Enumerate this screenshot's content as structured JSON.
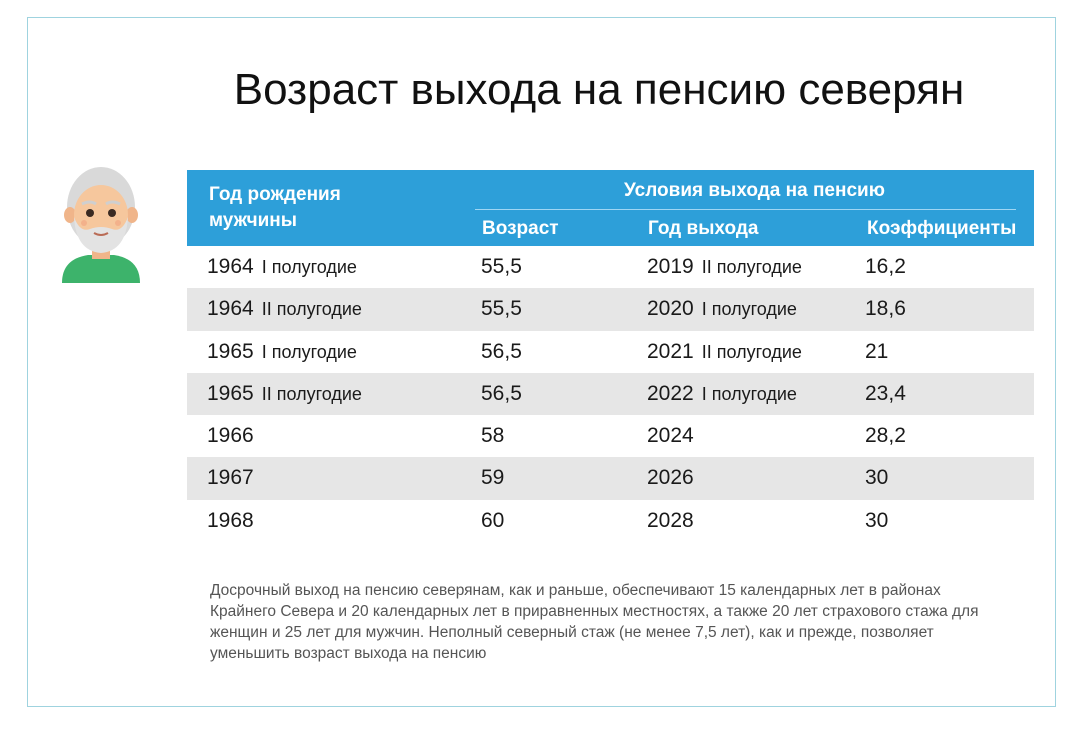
{
  "title": "Возраст выхода на пенсию северян",
  "table": {
    "header_birth": "Год рождения мужчины",
    "header_conditions": "Условия выхода на пенсию",
    "header_age": "Возраст",
    "header_year": "Год выхода",
    "header_coef": "Коэффициенты",
    "rows": [
      {
        "birth": "1964",
        "birth_half": "I полугодие",
        "age": "55,5",
        "year": "2019",
        "year_half": "II полугодие",
        "coef": "16,2"
      },
      {
        "birth": "1964",
        "birth_half": "II полугодие",
        "age": "55,5",
        "year": "2020",
        "year_half": "I полугодие",
        "coef": "18,6"
      },
      {
        "birth": "1965",
        "birth_half": "I полугодие",
        "age": "56,5",
        "year": "2021",
        "year_half": "II полугодие",
        "coef": "21"
      },
      {
        "birth": "1965",
        "birth_half": "II полугодие",
        "age": "56,5",
        "year": "2022",
        "year_half": "I полугодие",
        "coef": "23,4"
      },
      {
        "birth": "1966",
        "birth_half": "",
        "age": "58",
        "year": "2024",
        "year_half": "",
        "coef": "28,2"
      },
      {
        "birth": "1967",
        "birth_half": "",
        "age": "59",
        "year": "2026",
        "year_half": "",
        "coef": "30"
      },
      {
        "birth": "1968",
        "birth_half": "",
        "age": "60",
        "year": "2028",
        "year_half": "",
        "coef": "30"
      }
    ]
  },
  "note": "Досрочный выход на пенсию северянам, как и раньше, обеспечивают 15 календарных лет в районах Крайнего Севера и 20 календарных лет в приравненных местностях, а также 20 лет страхового стажа для женщин и 25 лет для мужчин. Неполный северный стаж (не менее 7,5 лет), как и прежде, позволяет уменьшить возраст выхода на пенсию",
  "avatar_icon": "elderly-man-icon",
  "colors": {
    "header": "#2d9fd9",
    "row_alt": "#e6e6e6",
    "frame": "#9fd3df",
    "shirt": "#3db36b"
  }
}
